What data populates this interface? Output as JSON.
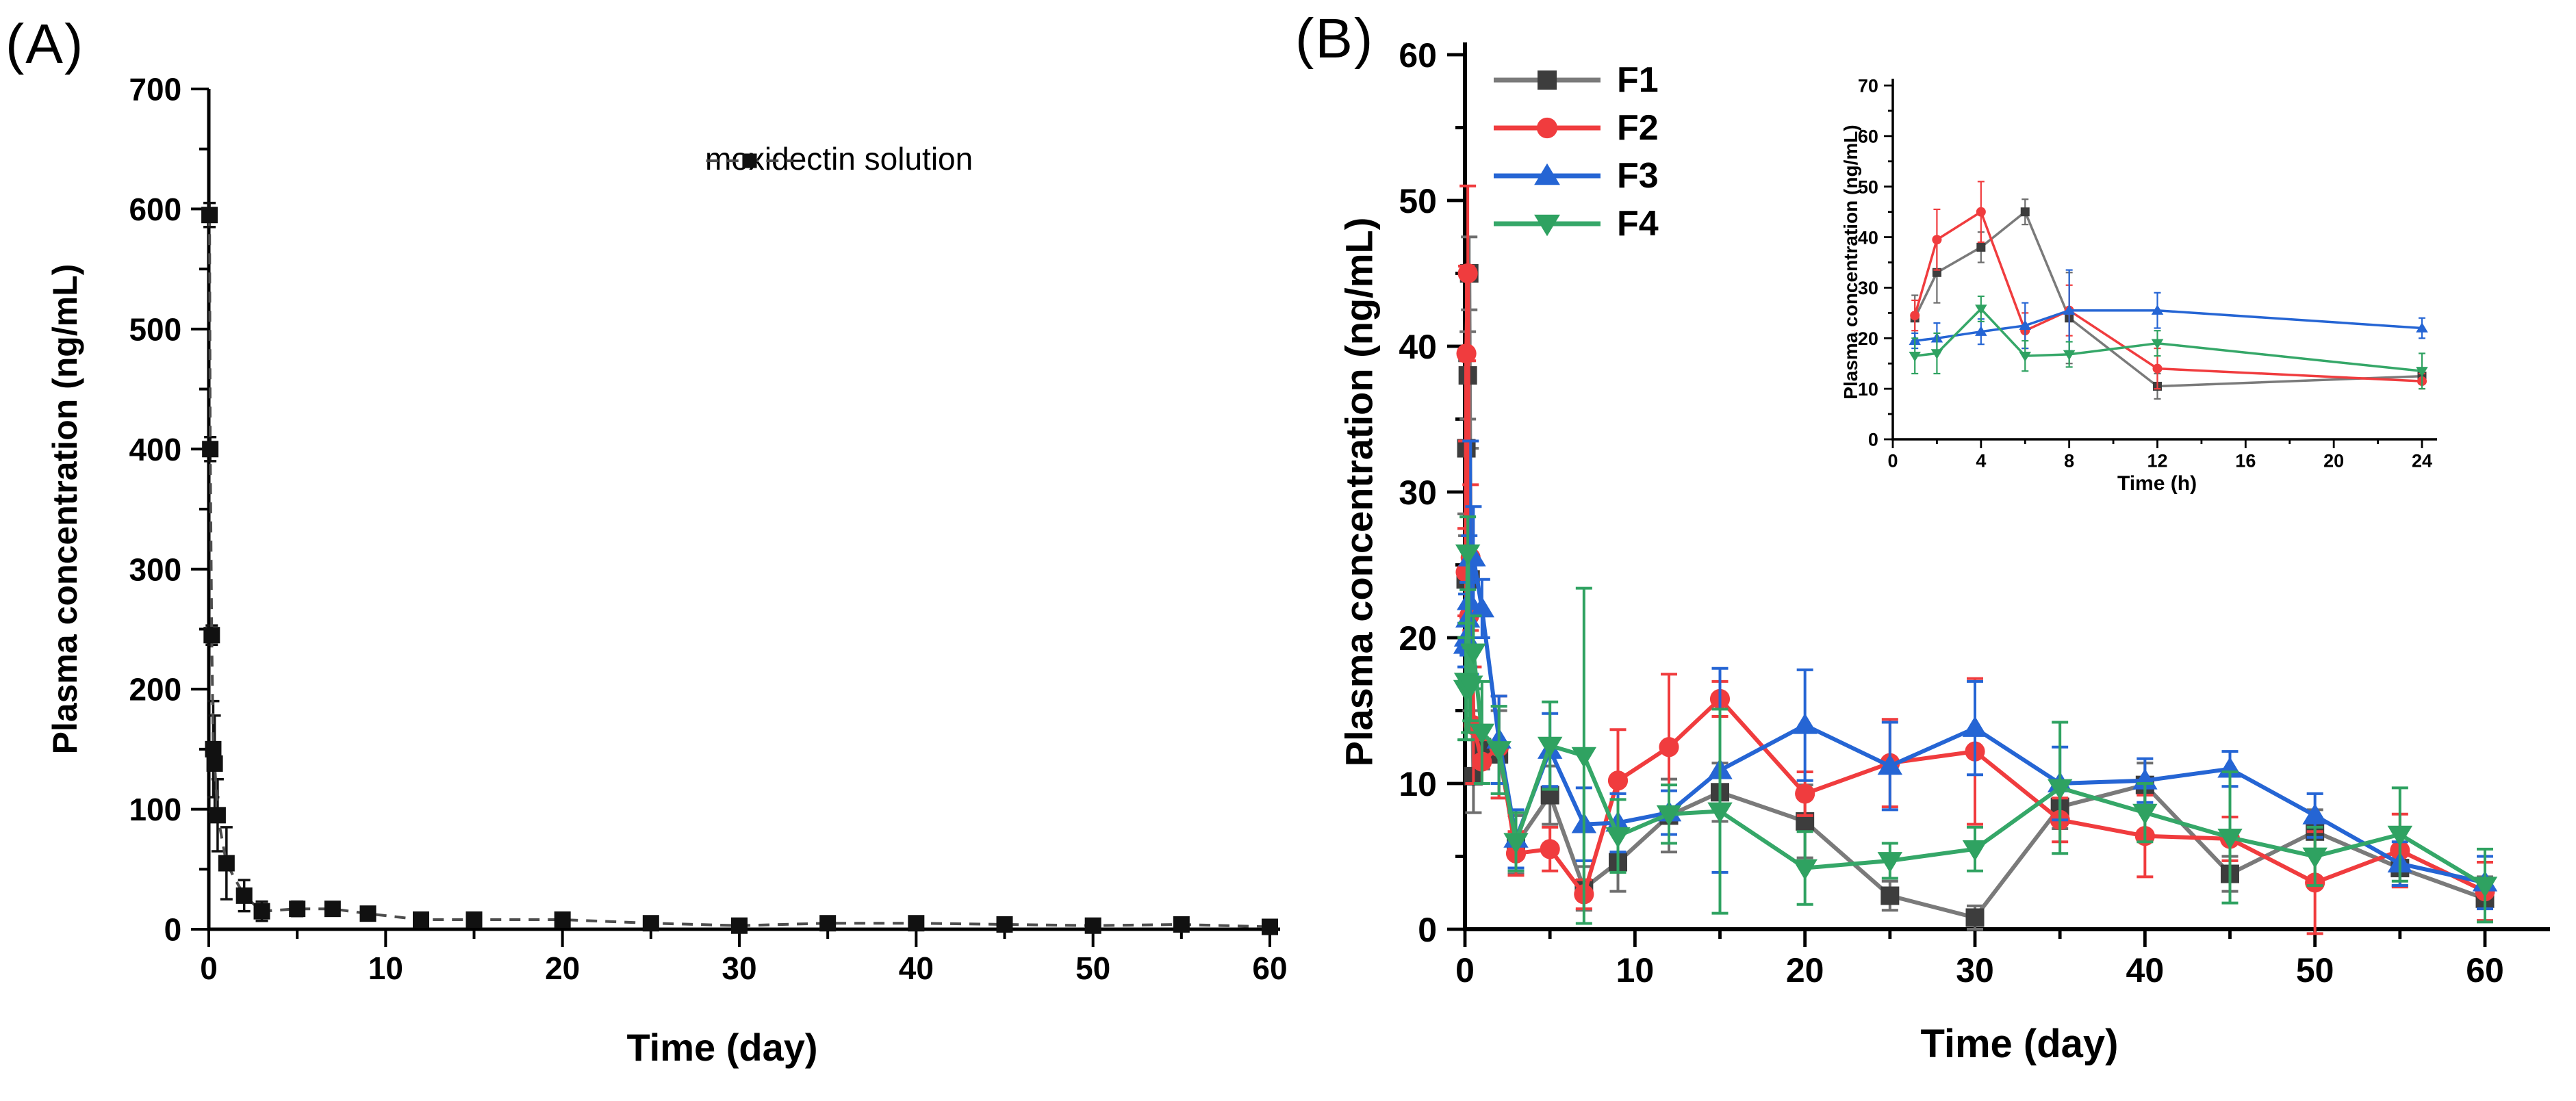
{
  "figure_title": "",
  "chart_data": [
    {
      "type": "line",
      "panel_label": "(A)",
      "xlabel": "Time (day)",
      "ylabel": "Plasma concentration (ng/mL)",
      "xlim": [
        0,
        60
      ],
      "ylim": [
        0,
        700
      ],
      "x_ticks": [
        0,
        10,
        20,
        30,
        40,
        50,
        60
      ],
      "y_ticks": [
        0,
        100,
        200,
        300,
        400,
        500,
        600,
        700
      ],
      "x_minor_step": 5,
      "y_minor_step": 50,
      "grid": false,
      "legend_position": "top-center",
      "x": [
        0.042,
        0.083,
        0.167,
        0.25,
        0.333,
        0.5,
        1,
        2,
        3,
        5,
        7,
        9,
        12,
        15,
        20,
        25,
        30,
        35,
        40,
        45,
        50,
        55,
        60
      ],
      "series": [
        {
          "name": "moxidectin solution",
          "marker": "square",
          "line_style": "dashed",
          "color": "#111111",
          "line_color": "#4d4d4d",
          "values": [
            595,
            400,
            245,
            150,
            138,
            95,
            55,
            28,
            15,
            17,
            17,
            13,
            8,
            8,
            8,
            5,
            3,
            5,
            5,
            4,
            3,
            4,
            2
          ],
          "errors": [
            10,
            10,
            8,
            40,
            40,
            30,
            30,
            13,
            8,
            6,
            5,
            4,
            3,
            3,
            2.5,
            2,
            1.5,
            2,
            2,
            1.5,
            1,
            1.5,
            1
          ]
        }
      ]
    },
    {
      "type": "line",
      "panel_label": "(B)",
      "xlabel": "Time (day)",
      "ylabel": "Plasma concentration (ng/mL)",
      "xlim": [
        0,
        60
      ],
      "ylim": [
        0,
        60
      ],
      "x_ticks": [
        0,
        10,
        20,
        30,
        40,
        50,
        60
      ],
      "y_ticks": [
        0,
        10,
        20,
        30,
        40,
        50,
        60
      ],
      "x_minor_step": 5,
      "y_minor_step": 5,
      "grid": false,
      "legend_position": "top-left-inside",
      "x": [
        0.042,
        0.083,
        0.167,
        0.25,
        0.333,
        0.5,
        1,
        2,
        3,
        5,
        7,
        9,
        12,
        15,
        20,
        25,
        30,
        35,
        40,
        45,
        50,
        55,
        60
      ],
      "series": [
        {
          "name": "F1",
          "marker": "square",
          "line_style": "solid",
          "color": "#3d3d3d",
          "line_color": "#7a7a7a",
          "error_color": "#6e6e6e",
          "values": [
            24,
            33,
            38,
            45,
            24,
            10.5,
            12.5,
            12,
            5.8,
            9.2,
            2.8,
            4.6,
            7.8,
            9.4,
            7.4,
            2.3,
            0.8,
            8.4,
            9.9,
            3.8,
            6.7,
            4.2,
            2.1
          ],
          "errors": [
            4.5,
            6,
            3,
            2.5,
            9,
            2.5,
            1.5,
            3,
            2,
            2,
            1.5,
            2,
            2.5,
            2,
            2.5,
            1,
            0.8,
            1.5,
            1.5,
            1.2,
            1.5,
            1.2,
            1.5
          ]
        },
        {
          "name": "F2",
          "marker": "circle",
          "line_style": "solid",
          "color": "#f03c3e",
          "line_color": "#f03c3e",
          "values": [
            24.5,
            39.5,
            45,
            21.5,
            25.5,
            14,
            11.5,
            12.5,
            5.2,
            5.5,
            2.4,
            10.2,
            12.5,
            15.8,
            9.3,
            11.4,
            12.2,
            7.5,
            6.4,
            6.2,
            3.2,
            5.4,
            2.6
          ],
          "errors": [
            3,
            6,
            6,
            3.5,
            5,
            4,
            1.5,
            3.5,
            1.5,
            1.5,
            1,
            3.5,
            5,
            1.2,
            1.5,
            3,
            5,
            1.5,
            2.8,
            1.5,
            3.5,
            2.5,
            2
          ]
        },
        {
          "name": "F3",
          "marker": "triangle-up",
          "line_style": "solid",
          "color": "#2565d4",
          "line_color": "#2565d4",
          "values": [
            19.5,
            20,
            21.3,
            22.5,
            25.5,
            25.5,
            22,
            13,
            6.2,
            12.3,
            7.2,
            7.3,
            8,
            10.9,
            14,
            11.2,
            13.8,
            10,
            10.2,
            11,
            7.8,
            4.5,
            3.2
          ],
          "errors": [
            1.5,
            3,
            2.5,
            4.5,
            8,
            3.5,
            2,
            3,
            2,
            2.5,
            2.5,
            2,
            1.5,
            7,
            3.8,
            3,
            3.2,
            2.5,
            1.5,
            1.2,
            1.5,
            1.5,
            1.8
          ]
        },
        {
          "name": "F4",
          "marker": "triangle-down",
          "line_style": "solid",
          "color": "#2fa261",
          "line_color": "#35a768",
          "values": [
            16.5,
            17,
            25.8,
            16.5,
            16.8,
            19,
            13.5,
            12.3,
            6,
            12.6,
            11.9,
            6.4,
            7.9,
            8.1,
            4.2,
            4.7,
            5.5,
            9.7,
            8,
            6.3,
            5,
            6.5,
            3
          ],
          "errors": [
            3.5,
            4,
            2.5,
            3,
            2.5,
            2.5,
            3.5,
            3,
            2,
            3,
            11.5,
            2.5,
            2,
            7,
            2.5,
            1.2,
            1.5,
            4.5,
            2,
            4.5,
            2,
            3.2,
            2.5
          ]
        }
      ],
      "inset": {
        "type": "line",
        "xlabel": "Time (h)",
        "ylabel": "Plasma concentration (ng/mL)",
        "xlim": [
          0,
          24
        ],
        "ylim": [
          0,
          70
        ],
        "x_ticks": [
          0,
          4,
          8,
          12,
          16,
          20,
          24
        ],
        "y_ticks": [
          0,
          10,
          20,
          30,
          40,
          50,
          60,
          70
        ],
        "x_minor_step": 2,
        "y_minor_step": 5,
        "grid": false,
        "x": [
          1,
          2,
          4,
          6,
          8,
          12,
          24
        ],
        "series": [
          {
            "name": "F1",
            "marker": "square",
            "line_style": "solid",
            "color": "#3d3d3d",
            "line_color": "#7a7a7a",
            "error_color": "#6e6e6e",
            "values": [
              24,
              33,
              38,
              45,
              24,
              10.5,
              12.5
            ],
            "errors": [
              4.5,
              6,
              3,
              2.5,
              9,
              2.5,
              1.5
            ]
          },
          {
            "name": "F2",
            "marker": "circle",
            "line_style": "solid",
            "color": "#f03c3e",
            "line_color": "#f03c3e",
            "values": [
              24.5,
              39.5,
              45,
              21.5,
              25.5,
              14,
              11.5
            ],
            "errors": [
              3,
              6,
              6,
              3.5,
              5,
              4,
              1.5
            ]
          },
          {
            "name": "F3",
            "marker": "triangle-up",
            "line_style": "solid",
            "color": "#2565d4",
            "line_color": "#2565d4",
            "values": [
              19.5,
              20,
              21.3,
              22.5,
              25.5,
              25.5,
              22
            ],
            "errors": [
              1.5,
              3,
              2.5,
              4.5,
              8,
              3.5,
              2
            ]
          },
          {
            "name": "F4",
            "marker": "triangle-down",
            "line_style": "solid",
            "color": "#2fa261",
            "line_color": "#35a768",
            "values": [
              16.5,
              17,
              25.8,
              16.5,
              16.8,
              19,
              13.5
            ],
            "errors": [
              3.5,
              4,
              2.5,
              3,
              2.5,
              2.5,
              3.5
            ]
          }
        ]
      }
    }
  ]
}
